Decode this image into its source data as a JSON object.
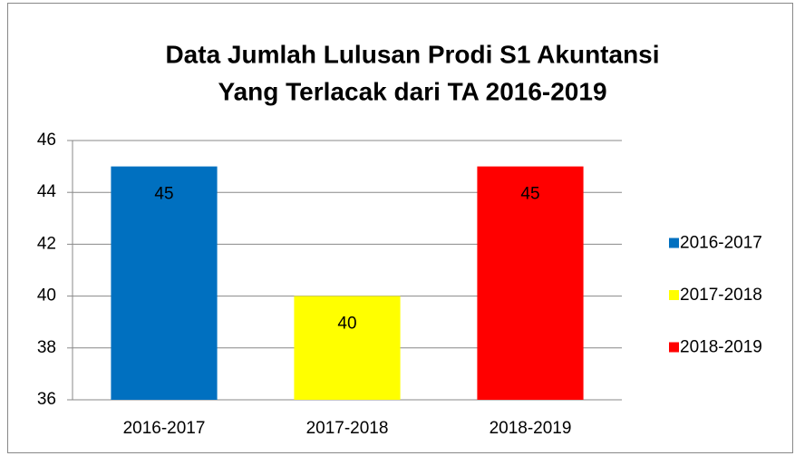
{
  "chart_data": {
    "type": "bar",
    "title": [
      "Data Jumlah Lulusan  Prodi S1 Akuntansi",
      "Yang Terlacak dari TA 2016-2019"
    ],
    "categories": [
      "2016-2017",
      "2017-2018",
      "2018-2019"
    ],
    "values": [
      45,
      40,
      45
    ],
    "colors": [
      "#0070c0",
      "#ffff00",
      "#ff0000"
    ],
    "ylim": [
      36,
      46
    ],
    "yticks": [
      36,
      38,
      40,
      42,
      44,
      46
    ],
    "grid": true,
    "legend": "right"
  }
}
